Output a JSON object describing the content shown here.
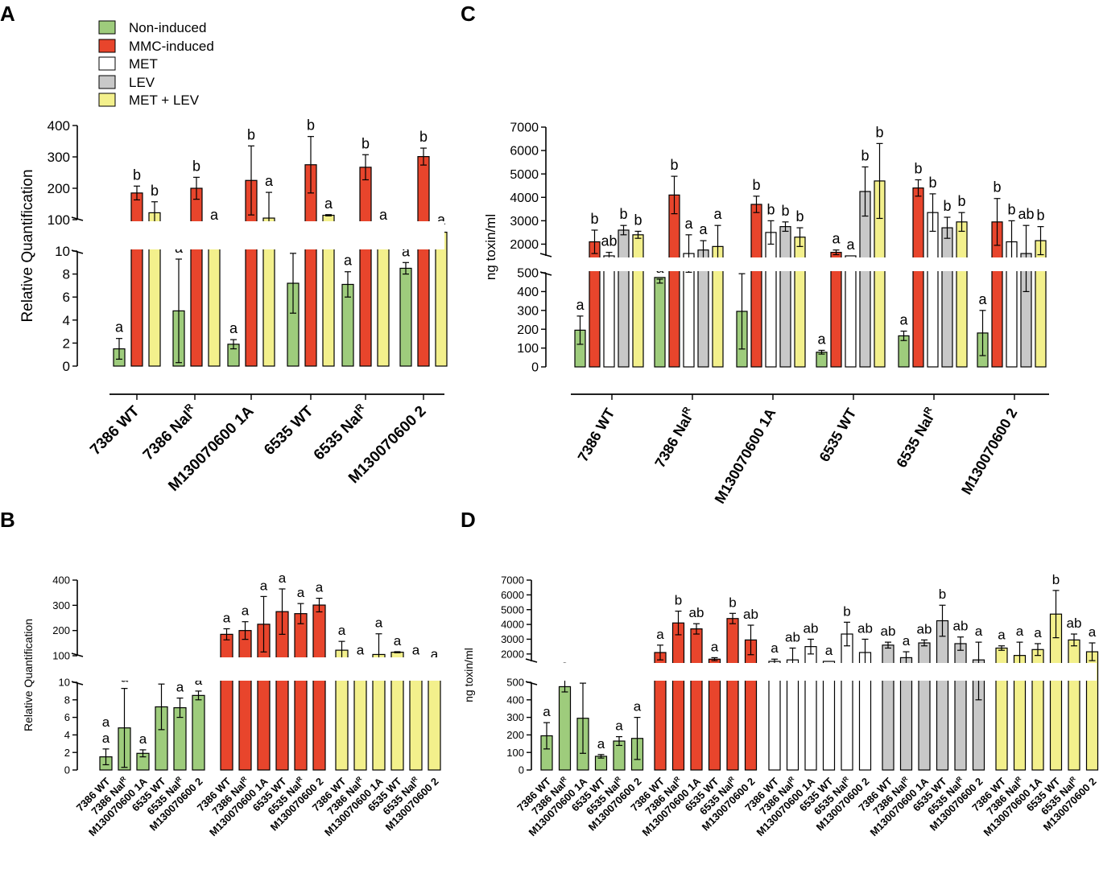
{
  "colors": {
    "non_induced": "#9ecc7c",
    "mmc": "#e8452c",
    "met": "#ffffff",
    "lev": "#c8c8c8",
    "met_lev": "#f3f08c",
    "stroke": "#000000"
  },
  "legend": {
    "items": [
      {
        "label": "Non-induced",
        "key": "non_induced"
      },
      {
        "label": "MMC-induced",
        "key": "mmc"
      },
      {
        "label": "MET",
        "key": "met"
      },
      {
        "label": "LEV",
        "key": "lev"
      },
      {
        "label": "MET + LEV",
        "key": "met_lev"
      }
    ]
  },
  "chart_data": [
    {
      "panel": "A",
      "type": "bar",
      "ylabel": "Relative Quantification",
      "lower_axis": {
        "range": [
          0,
          10
        ],
        "ticks": [
          "0",
          "2",
          "4",
          "6",
          "8",
          "10"
        ]
      },
      "upper_axis": {
        "range": [
          100,
          400
        ],
        "ticks": [
          "100",
          "200",
          "300",
          "400"
        ]
      },
      "categories": [
        "7386 WT",
        "7386 Nal",
        "M130070600 1A",
        "6535 WT",
        "6535 Nal",
        "M130070600 2"
      ],
      "category_labels": [
        {
          "base": "7386 WT",
          "sup": ""
        },
        {
          "base": "7386 Nal",
          "sup": "R"
        },
        {
          "base": "M130070600 1A",
          "sup": ""
        },
        {
          "base": "6535 WT",
          "sup": ""
        },
        {
          "base": "6535 Nal",
          "sup": "R"
        },
        {
          "base": "M130070600 2",
          "sup": ""
        }
      ],
      "series": [
        {
          "name": "Non-induced",
          "key": "non_induced",
          "values": [
            1.5,
            4.8,
            1.9,
            7.2,
            7.1,
            8.5
          ],
          "err": [
            0.9,
            4.5,
            0.4,
            2.6,
            1.1,
            0.5
          ],
          "labels": [
            "a",
            "a",
            "a",
            "a",
            "a",
            "a"
          ]
        },
        {
          "name": "MMC-induced",
          "key": "mmc",
          "values": [
            185,
            200,
            225,
            275,
            267,
            301
          ],
          "err": [
            22,
            35,
            110,
            90,
            40,
            27
          ],
          "labels": [
            "b",
            "b",
            "b",
            "b",
            "b",
            "b"
          ]
        },
        {
          "name": "MET + LEV",
          "key": "met_lev",
          "values": [
            122,
            70,
            105,
            114,
            70,
            60
          ],
          "err": [
            35,
            10,
            82,
            2,
            10,
            4
          ],
          "labels": [
            "b",
            "a",
            "a",
            "a",
            "a",
            "a"
          ]
        }
      ]
    },
    {
      "panel": "B",
      "type": "bar",
      "ylabel": "Relative Quantification",
      "lower_axis": {
        "range": [
          0,
          10
        ],
        "ticks": [
          "0",
          "2",
          "4",
          "6",
          "8",
          "10"
        ]
      },
      "upper_axis": {
        "range": [
          100,
          400
        ],
        "ticks": [
          "100",
          "200",
          "300",
          "400"
        ]
      },
      "category_labels": [
        {
          "base": "7386 WT",
          "sup": ""
        },
        {
          "base": "7386 Nal",
          "sup": "R"
        },
        {
          "base": "M130070600 1A",
          "sup": ""
        },
        {
          "base": "6535 WT",
          "sup": ""
        },
        {
          "base": "6535 Nal",
          "sup": "R"
        },
        {
          "base": "M130070600 2",
          "sup": ""
        }
      ],
      "groups": [
        {
          "name": "Non-induced",
          "key": "non_induced",
          "values": [
            1.5,
            4.8,
            1.9,
            7.2,
            7.1,
            8.5
          ],
          "err": [
            0.9,
            4.5,
            0.4,
            2.6,
            1.1,
            0.5
          ],
          "labels": [
            "a",
            "a",
            "a",
            "a",
            "a",
            "a"
          ],
          "extra_label_first": "a"
        },
        {
          "name": "MMC-induced",
          "key": "mmc",
          "values": [
            185,
            200,
            225,
            275,
            267,
            301
          ],
          "err": [
            22,
            35,
            110,
            90,
            40,
            27
          ],
          "labels": [
            "a",
            "a",
            "a",
            "a",
            "a",
            "a"
          ]
        },
        {
          "name": "MET + LEV",
          "key": "met_lev",
          "values": [
            122,
            70,
            105,
            114,
            70,
            60
          ],
          "err": [
            35,
            10,
            82,
            2,
            10,
            4
          ],
          "labels": [
            "a",
            "a",
            "a",
            "a",
            "a",
            "a"
          ]
        }
      ]
    },
    {
      "panel": "C",
      "type": "bar",
      "ylabel": "ng toxin/ml",
      "lower_axis": {
        "range": [
          0,
          500
        ],
        "ticks": [
          "0",
          "100",
          "200",
          "300",
          "400",
          "500"
        ]
      },
      "upper_axis": {
        "range": [
          1500,
          7000
        ],
        "ticks": [
          "2000",
          "3000",
          "4000",
          "5000",
          "6000",
          "7000"
        ]
      },
      "category_labels": [
        {
          "base": "7386 WT",
          "sup": ""
        },
        {
          "base": "7386 Nal",
          "sup": "R"
        },
        {
          "base": "M130070600 1A",
          "sup": ""
        },
        {
          "base": "6535 WT",
          "sup": ""
        },
        {
          "base": "6535 Nal",
          "sup": "R"
        },
        {
          "base": "M130070600 2",
          "sup": ""
        }
      ],
      "series": [
        {
          "name": "Non-induced",
          "key": "non_induced",
          "values": [
            195,
            475,
            295,
            78,
            165,
            180
          ],
          "err": [
            75,
            30,
            200,
            10,
            25,
            120
          ],
          "labels": [
            "a",
            "a",
            "a",
            "a",
            "a",
            "a"
          ]
        },
        {
          "name": "MMC-induced",
          "key": "mmc",
          "values": [
            2100,
            4100,
            3700,
            1650,
            4400,
            2950
          ],
          "err": [
            500,
            800,
            350,
            100,
            350,
            1000
          ],
          "labels": [
            "b",
            "b",
            "b",
            "a",
            "b",
            "b"
          ]
        },
        {
          "name": "MET",
          "key": "met",
          "values": [
            1500,
            1600,
            2500,
            1500,
            3350,
            2100
          ],
          "err": [
            150,
            800,
            500,
            0,
            800,
            900
          ],
          "labels": [
            "ab",
            "a",
            "b",
            "a",
            "b",
            "b"
          ]
        },
        {
          "name": "LEV",
          "key": "lev",
          "values": [
            2600,
            1750,
            2750,
            4250,
            2700,
            1600
          ],
          "err": [
            200,
            400,
            200,
            1050,
            450,
            1200
          ],
          "labels": [
            "b",
            "a",
            "b",
            "b",
            "b",
            "ab"
          ]
        },
        {
          "name": "MET + LEV",
          "key": "met_lev",
          "values": [
            2400,
            1900,
            2300,
            4700,
            2950,
            2150
          ],
          "err": [
            150,
            900,
            400,
            1600,
            400,
            600
          ],
          "labels": [
            "b",
            "a",
            "b",
            "b",
            "b",
            "b"
          ]
        }
      ]
    },
    {
      "panel": "D",
      "type": "bar",
      "ylabel": "ng toxin/ml",
      "lower_axis": {
        "range": [
          0,
          500
        ],
        "ticks": [
          "0",
          "100",
          "200",
          "300",
          "400",
          "500"
        ]
      },
      "upper_axis": {
        "range": [
          1500,
          7000
        ],
        "ticks": [
          "2000",
          "3000",
          "4000",
          "5000",
          "6000",
          "7000"
        ]
      },
      "category_labels": [
        {
          "base": "7386 WT",
          "sup": ""
        },
        {
          "base": "7386 Nal",
          "sup": "R"
        },
        {
          "base": "M130070600 1A",
          "sup": ""
        },
        {
          "base": "6535 WT",
          "sup": ""
        },
        {
          "base": "6535 Nal",
          "sup": "R"
        },
        {
          "base": "M130070600 2",
          "sup": ""
        }
      ],
      "groups": [
        {
          "name": "Non-induced",
          "key": "non_induced",
          "values": [
            195,
            475,
            295,
            78,
            165,
            180
          ],
          "err": [
            75,
            30,
            200,
            10,
            25,
            120
          ],
          "labels": [
            "a",
            "a",
            "a",
            "a",
            "a",
            "a"
          ]
        },
        {
          "name": "MMC-induced",
          "key": "mmc",
          "values": [
            2100,
            4100,
            3700,
            1650,
            4400,
            2950
          ],
          "err": [
            500,
            800,
            350,
            100,
            350,
            1000
          ],
          "labels": [
            "a",
            "b",
            "ab",
            "a",
            "b",
            "ab"
          ]
        },
        {
          "name": "MET",
          "key": "met",
          "values": [
            1500,
            1600,
            2500,
            1500,
            3350,
            2100
          ],
          "err": [
            150,
            800,
            500,
            0,
            800,
            900
          ],
          "labels": [
            "a",
            "ab",
            "ab",
            "a",
            "b",
            "ab"
          ]
        },
        {
          "name": "LEV",
          "key": "lev",
          "values": [
            2600,
            1750,
            2750,
            4250,
            2700,
            1600
          ],
          "err": [
            200,
            400,
            200,
            1050,
            450,
            1200
          ],
          "labels": [
            "ab",
            "a",
            "ab",
            "b",
            "ab",
            "a"
          ]
        },
        {
          "name": "MET + LEV",
          "key": "met_lev",
          "values": [
            2400,
            1900,
            2300,
            4700,
            2950,
            2150
          ],
          "err": [
            150,
            900,
            400,
            1600,
            400,
            600
          ],
          "labels": [
            "a",
            "a",
            "a",
            "b",
            "ab",
            "a"
          ]
        }
      ]
    }
  ]
}
